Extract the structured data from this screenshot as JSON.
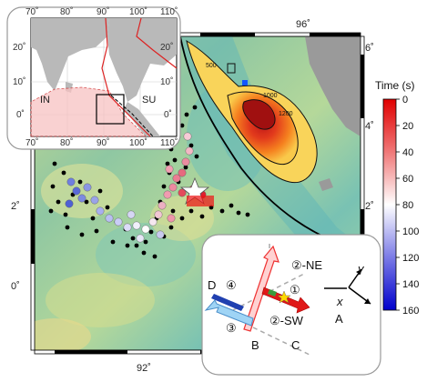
{
  "map": {
    "lon_labels_top": [
      "96˚"
    ],
    "lon_labels_bottom": [
      "92˚"
    ],
    "lat_labels_left": [
      "2˚",
      "0˚"
    ],
    "lat_labels_right": [
      "6˚",
      "4˚",
      "2˚"
    ],
    "contour_labels": [
      "500",
      "1000",
      "1200"
    ]
  },
  "inset": {
    "lon_labels_top": [
      "70˚",
      "80˚",
      "90˚",
      "100˚",
      "110˚"
    ],
    "lon_labels_bottom": [
      "70˚",
      "80˚",
      "90˚",
      "100˚",
      "110˚"
    ],
    "lat_labels_left": [
      "20˚",
      "10˚",
      "0˚"
    ],
    "lat_labels_right": [
      "20˚",
      "10˚",
      "0˚"
    ],
    "plate_in": "IN",
    "plate_su": "SU"
  },
  "colorbar": {
    "title": "Time (s)",
    "ticks": [
      "0",
      "20",
      "40",
      "60",
      "80",
      "100",
      "120",
      "140",
      "160"
    ],
    "colors": {
      "top": "#e00000",
      "mid": "#ffffff",
      "bottom": "#0000cc"
    }
  },
  "schematic": {
    "seg1_label": "①",
    "seg2ne_label": "②-NE",
    "seg2sw_label": "②-SW",
    "seg3_label": "③",
    "seg4_label": "④",
    "point_a": "A",
    "point_b": "B",
    "point_c": "C",
    "point_d": "D",
    "axis_x": "x",
    "axis_y": "y"
  }
}
